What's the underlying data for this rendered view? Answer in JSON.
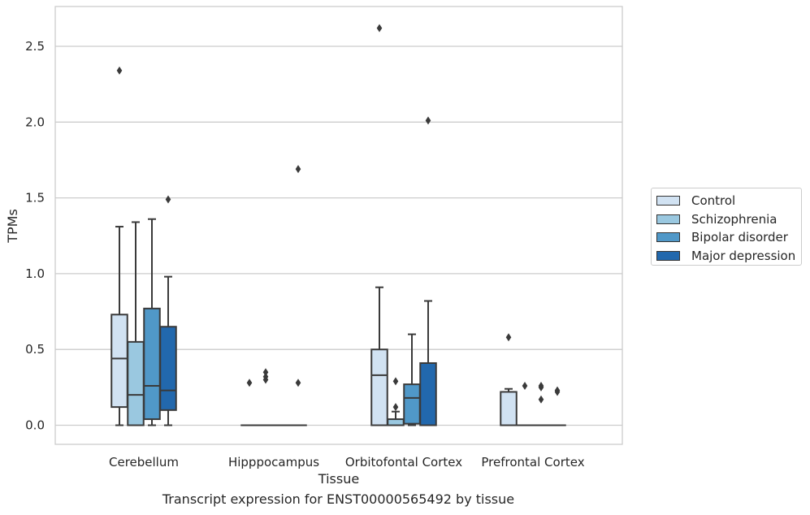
{
  "caption": "Transcript expression for ENST00000565492 by tissue",
  "legend": {
    "items": [
      {
        "label": "Control",
        "color": "#d1e2f2"
      },
      {
        "label": "Schizophrenia",
        "color": "#9ac8e0"
      },
      {
        "label": "Bipolar disorder",
        "color": "#5098c8"
      },
      {
        "label": "Major depression",
        "color": "#2268ad"
      }
    ]
  },
  "chart_data": {
    "type": "box",
    "xlabel": "Tissue",
    "ylabel": "TPMs",
    "ylim": [
      -0.13,
      2.75
    ],
    "yticks": [
      0.0,
      0.5,
      1.0,
      1.5,
      2.0,
      2.5
    ],
    "ytick_labels": [
      "0.0",
      "0.5",
      "1.0",
      "1.5",
      "2.0",
      "2.5"
    ],
    "grid": "horizontal",
    "legend_position": "outside-right",
    "categories": [
      "Cerebellum",
      "Hipppocampus",
      "Orbitofontal Cortex",
      "Prefrontal Cortex"
    ],
    "series": [
      {
        "name": "Control",
        "color": "#d1e2f2",
        "boxes": [
          {
            "whisker_low": 0.0,
            "q1": 0.12,
            "median": 0.44,
            "q3": 0.73,
            "whisker_high": 1.31,
            "outliers": [
              2.34
            ]
          },
          {
            "whisker_low": 0.0,
            "q1": 0.0,
            "median": 0.0,
            "q3": 0.0,
            "whisker_high": 0.0,
            "outliers": [
              0.28
            ]
          },
          {
            "whisker_low": 0.0,
            "q1": 0.0,
            "median": 0.33,
            "q3": 0.5,
            "whisker_high": 0.91,
            "outliers": [
              2.62
            ]
          },
          {
            "whisker_low": 0.0,
            "q1": 0.0,
            "median": 0.0,
            "q3": 0.22,
            "whisker_high": 0.24,
            "outliers": [
              0.58
            ]
          }
        ]
      },
      {
        "name": "Schizophrenia",
        "color": "#9ac8e0",
        "boxes": [
          {
            "whisker_low": 0.0,
            "q1": 0.0,
            "median": 0.2,
            "q3": 0.55,
            "whisker_high": 1.34,
            "outliers": []
          },
          {
            "whisker_low": 0.0,
            "q1": 0.0,
            "median": 0.0,
            "q3": 0.0,
            "whisker_high": 0.0,
            "outliers": [
              0.3,
              0.32,
              0.35
            ]
          },
          {
            "whisker_low": 0.0,
            "q1": 0.0,
            "median": 0.0,
            "q3": 0.04,
            "whisker_high": 0.09,
            "outliers": [
              0.12,
              0.29
            ]
          },
          {
            "whisker_low": 0.0,
            "q1": 0.0,
            "median": 0.0,
            "q3": 0.0,
            "whisker_high": 0.0,
            "outliers": [
              0.26
            ]
          }
        ]
      },
      {
        "name": "Bipolar disorder",
        "color": "#5098c8",
        "boxes": [
          {
            "whisker_low": 0.0,
            "q1": 0.04,
            "median": 0.26,
            "q3": 0.77,
            "whisker_high": 1.36,
            "outliers": []
          },
          {
            "whisker_low": 0.0,
            "q1": 0.0,
            "median": 0.0,
            "q3": 0.0,
            "whisker_high": 0.0,
            "outliers": []
          },
          {
            "whisker_low": 0.0,
            "q1": 0.01,
            "median": 0.18,
            "q3": 0.27,
            "whisker_high": 0.6,
            "outliers": []
          },
          {
            "whisker_low": 0.0,
            "q1": 0.0,
            "median": 0.0,
            "q3": 0.0,
            "whisker_high": 0.0,
            "outliers": [
              0.17,
              0.25,
              0.26
            ]
          }
        ]
      },
      {
        "name": "Major depression",
        "color": "#2268ad",
        "boxes": [
          {
            "whisker_low": 0.0,
            "q1": 0.1,
            "median": 0.23,
            "q3": 0.65,
            "whisker_high": 0.98,
            "outliers": [
              1.49
            ]
          },
          {
            "whisker_low": 0.0,
            "q1": 0.0,
            "median": 0.0,
            "q3": 0.0,
            "whisker_high": 0.0,
            "outliers": [
              0.28,
              1.69
            ]
          },
          {
            "whisker_low": 0.0,
            "q1": 0.0,
            "median": 0.0,
            "q3": 0.41,
            "whisker_high": 0.82,
            "outliers": [
              2.01
            ]
          },
          {
            "whisker_low": 0.0,
            "q1": 0.0,
            "median": 0.0,
            "q3": 0.0,
            "whisker_high": 0.0,
            "outliers": [
              0.22,
              0.23
            ]
          }
        ]
      }
    ]
  }
}
